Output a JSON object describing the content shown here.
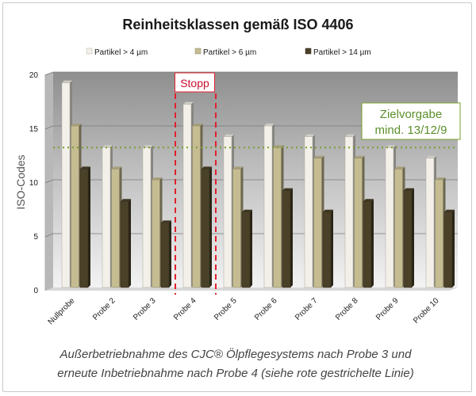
{
  "chart_data": {
    "type": "bar",
    "title": "Reinheitsklassen gemäß ISO 4406",
    "ylabel": "ISO-Codes",
    "xlabel": "",
    "ylim": [
      0,
      20
    ],
    "yticks": [
      0,
      5,
      10,
      15,
      20
    ],
    "grid": true,
    "legend_position": "top",
    "categories": [
      "Nullprobe",
      "Probe 2",
      "Probe 3",
      "Probe 4",
      "Probe 5",
      "Probe 6",
      "Probe 7",
      "Probe 8",
      "Probe 9",
      "Probe 10"
    ],
    "series": [
      {
        "name": "Partikel > 4 µm",
        "color": "#f2f0e8",
        "values": [
          19,
          13,
          13,
          17,
          14,
          15,
          14,
          14,
          13,
          12
        ]
      },
      {
        "name": "Partikel > 6 µm",
        "color": "#c5bc92",
        "values": [
          15,
          11,
          10,
          15,
          11,
          13,
          12,
          12,
          11,
          10
        ]
      },
      {
        "name": "Partikel > 14 µm",
        "color": "#4a4128",
        "values": [
          11,
          8,
          6,
          11,
          7,
          9,
          7,
          8,
          9,
          7
        ]
      }
    ],
    "annotations": {
      "stop_label": "Stopp",
      "stop_category": "Probe 4",
      "stop_color": "#e0202f",
      "target_label_line1": "Zielvorgabe",
      "target_label_line2": "mind. 13/12/9",
      "target_value": 13,
      "target_color": "#7a9c2e"
    },
    "caption_line1": "Außerbetriebnahme des CJC® Ölpflegesystems nach Probe 3 und",
    "caption_line2": "erneute Inbetriebnahme nach Probe 4 (siehe rote gestrichelte Linie)"
  }
}
